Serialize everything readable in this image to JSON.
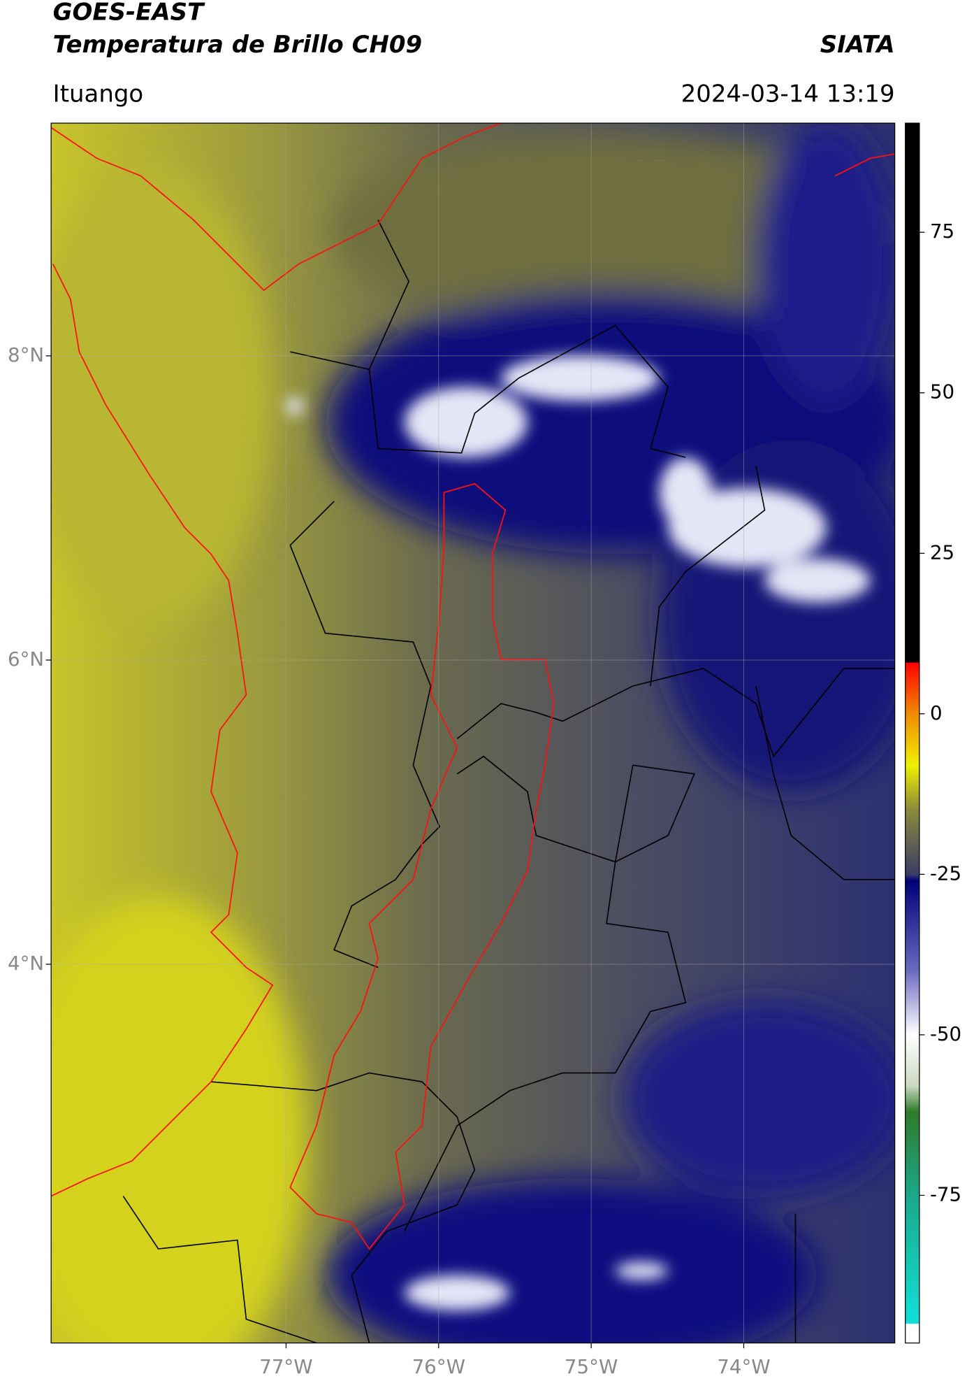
{
  "chart_data": {
    "type": "map",
    "title": "GOES-EAST",
    "subtitle": "Temperatura de Brillo CH09",
    "source": "SIATA",
    "location": "Ituango",
    "datetime": "2024-03-14 13:19",
    "xlim": [
      -78.54,
      -73.01
    ],
    "ylim": [
      1.51,
      9.53
    ],
    "xticks": [
      {
        "value": -77,
        "label": "77°W"
      },
      {
        "value": -76,
        "label": "76°W"
      },
      {
        "value": -75,
        "label": "75°W"
      },
      {
        "value": -74,
        "label": "74°W"
      }
    ],
    "yticks": [
      {
        "value": 8,
        "label": "8°N"
      },
      {
        "value": 6,
        "label": "6°N"
      },
      {
        "value": 4,
        "label": "4°N"
      }
    ],
    "grid": true,
    "colorbar": {
      "clim": [
        -98,
        92
      ],
      "ticks": [
        75,
        50,
        25,
        0,
        -25,
        -50,
        -75
      ],
      "stops": [
        {
          "value": -98,
          "color": "#ffffff"
        },
        {
          "value": -95,
          "color": "#ffffff"
        },
        {
          "value": -95,
          "color": "#10e0d8"
        },
        {
          "value": -75,
          "color": "#1aa88a"
        },
        {
          "value": -62,
          "color": "#2f7a2a"
        },
        {
          "value": -58,
          "color": "#c8d8c0"
        },
        {
          "value": -50,
          "color": "#ffffff"
        },
        {
          "value": -40,
          "color": "#6a6ac0"
        },
        {
          "value": -26,
          "color": "#00007a"
        },
        {
          "value": -25,
          "color": "#3a3d66"
        },
        {
          "value": -15,
          "color": "#8a8a3a"
        },
        {
          "value": -8,
          "color": "#f0f000"
        },
        {
          "value": 0,
          "color": "#f08a00"
        },
        {
          "value": 8,
          "color": "#ff0000"
        },
        {
          "value": 8,
          "color": "#000000"
        },
        {
          "value": 92,
          "color": "#000000"
        }
      ]
    }
  }
}
